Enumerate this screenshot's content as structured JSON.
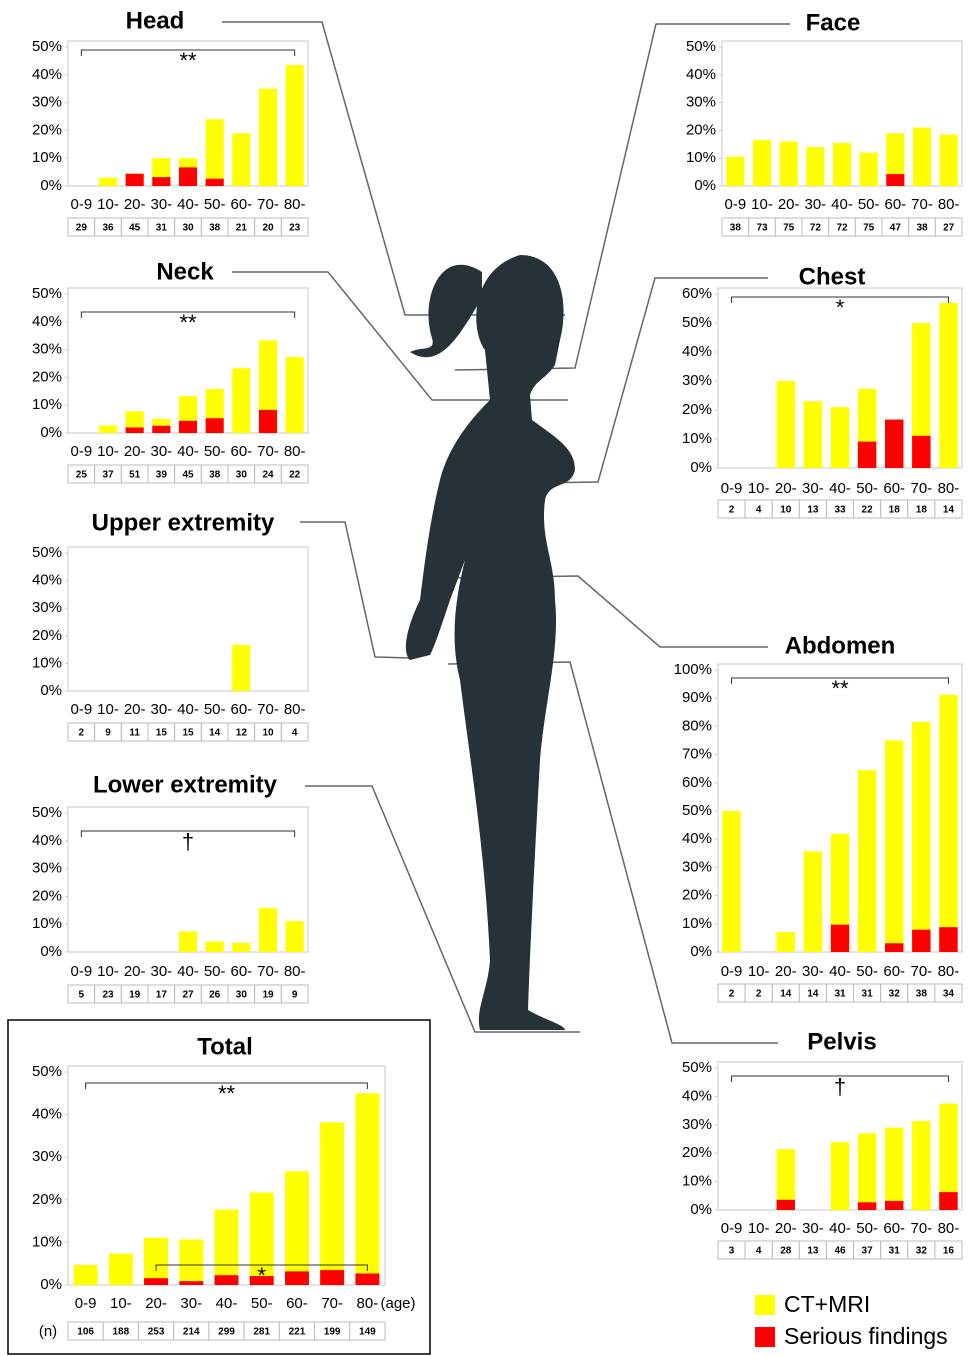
{
  "legend": [
    {
      "name": "CT+MRI",
      "color": "#ffff00"
    },
    {
      "name": "Serious findings",
      "color": "#ff0000"
    }
  ],
  "chart_data": [
    {
      "type": "bar",
      "title": "Head",
      "categories": [
        "0-9",
        "10-",
        "20-",
        "30-",
        "40-",
        "50-",
        "60-",
        "70-",
        "80-"
      ],
      "series": [
        {
          "values": [
            0,
            3,
            4.4,
            10,
            10,
            24,
            19,
            35,
            43.5
          ]
        },
        {
          "values": [
            0,
            0,
            4.4,
            3.2,
            6.7,
            2.6,
            0,
            0,
            0
          ]
        }
      ],
      "n": [
        29,
        36,
        45,
        31,
        30,
        38,
        21,
        20,
        23
      ],
      "ylim": [
        0,
        50
      ],
      "yticks": [
        {
          "value": 0,
          "label": "0%"
        },
        {
          "value": 10,
          "label": "10%"
        },
        {
          "value": 20,
          "label": "20%"
        },
        {
          "value": 30,
          "label": "30%"
        },
        {
          "value": 40,
          "label": "40%"
        },
        {
          "value": 50,
          "label": "50%"
        }
      ],
      "annotations": [
        {
          "text": "**",
          "from": 0,
          "to": 8
        }
      ]
    },
    {
      "type": "bar",
      "title": "Face",
      "categories": [
        "0-9",
        "10-",
        "20-",
        "30-",
        "40-",
        "50-",
        "60-",
        "70-",
        "80-"
      ],
      "series": [
        {
          "values": [
            10.5,
            16.5,
            16,
            14,
            15.5,
            12,
            19,
            21,
            18.5
          ]
        },
        {
          "values": [
            0,
            0,
            0,
            0,
            0,
            0,
            4.3,
            0,
            0
          ]
        }
      ],
      "n": [
        38,
        73,
        75,
        72,
        72,
        75,
        47,
        38,
        27
      ],
      "ylim": [
        0,
        50
      ],
      "yticks": [
        {
          "value": 0,
          "label": "0%"
        },
        {
          "value": 10,
          "label": "10%"
        },
        {
          "value": 20,
          "label": "20%"
        },
        {
          "value": 30,
          "label": "30%"
        },
        {
          "value": 40,
          "label": "40%"
        },
        {
          "value": 50,
          "label": "50%"
        }
      ],
      "annotations": []
    },
    {
      "type": "bar",
      "title": "Neck",
      "categories": [
        "0-9",
        "10-",
        "20-",
        "30-",
        "40-",
        "50-",
        "60-",
        "70-",
        "80-"
      ],
      "series": [
        {
          "values": [
            0,
            2.7,
            7.8,
            5.1,
            13.3,
            15.8,
            23.3,
            33.3,
            27.3
          ]
        },
        {
          "values": [
            0,
            0,
            2,
            2.6,
            4.4,
            5.3,
            0,
            8.3,
            0
          ]
        }
      ],
      "n": [
        25,
        37,
        51,
        39,
        45,
        38,
        30,
        24,
        22
      ],
      "ylim": [
        0,
        50
      ],
      "yticks": [
        {
          "value": 0,
          "label": "0%"
        },
        {
          "value": 10,
          "label": "10%"
        },
        {
          "value": 20,
          "label": "20%"
        },
        {
          "value": 30,
          "label": "30%"
        },
        {
          "value": 40,
          "label": "40%"
        },
        {
          "value": 50,
          "label": "50%"
        }
      ],
      "annotations": [
        {
          "text": "**",
          "from": 0,
          "to": 8
        }
      ]
    },
    {
      "type": "bar",
      "title": "Chest",
      "categories": [
        "0-9",
        "10-",
        "20-",
        "30-",
        "40-",
        "50-",
        "60-",
        "70-",
        "80-"
      ],
      "series": [
        {
          "values": [
            0,
            0,
            30,
            23,
            21,
            27.3,
            16.7,
            50,
            57
          ]
        },
        {
          "values": [
            0,
            0,
            0,
            0,
            0,
            9.1,
            16.7,
            11.1,
            0
          ]
        }
      ],
      "n": [
        2,
        4,
        10,
        13,
        33,
        22,
        18,
        18,
        14
      ],
      "ylim": [
        0,
        60
      ],
      "yticks": [
        {
          "value": 0,
          "label": "0%"
        },
        {
          "value": 10,
          "label": "10%"
        },
        {
          "value": 20,
          "label": "20%"
        },
        {
          "value": 30,
          "label": "30%"
        },
        {
          "value": 40,
          "label": "40%"
        },
        {
          "value": 50,
          "label": "50%"
        },
        {
          "value": 60,
          "label": "60%"
        }
      ],
      "annotations": [
        {
          "text": "*",
          "from": 0,
          "to": 8
        }
      ]
    },
    {
      "type": "bar",
      "title": "Upper extremity",
      "categories": [
        "0-9",
        "10-",
        "20-",
        "30-",
        "40-",
        "50-",
        "60-",
        "70-",
        "80-"
      ],
      "series": [
        {
          "values": [
            0,
            0,
            0,
            0,
            0,
            0,
            16.7,
            0,
            0
          ]
        },
        {
          "values": [
            0,
            0,
            0,
            0,
            0,
            0,
            0,
            0,
            0
          ]
        }
      ],
      "n": [
        2,
        9,
        11,
        15,
        15,
        14,
        12,
        10,
        4
      ],
      "ylim": [
        0,
        50
      ],
      "yticks": [
        {
          "value": 0,
          "label": "0%"
        },
        {
          "value": 10,
          "label": "10%"
        },
        {
          "value": 20,
          "label": "20%"
        },
        {
          "value": 30,
          "label": "30%"
        },
        {
          "value": 40,
          "label": "40%"
        },
        {
          "value": 50,
          "label": "50%"
        }
      ],
      "annotations": []
    },
    {
      "type": "bar",
      "title": "Abdomen",
      "categories": [
        "0-9",
        "10-",
        "20-",
        "30-",
        "40-",
        "50-",
        "60-",
        "70-",
        "80-"
      ],
      "series": [
        {
          "values": [
            50,
            0,
            7.1,
            35.7,
            41.9,
            64.5,
            75,
            81.6,
            91.2
          ]
        },
        {
          "values": [
            0,
            0,
            0,
            0,
            9.7,
            0,
            3.1,
            7.9,
            8.8
          ]
        }
      ],
      "n": [
        2,
        2,
        14,
        14,
        31,
        31,
        32,
        38,
        34
      ],
      "ylim": [
        0,
        100
      ],
      "yticks": [
        {
          "value": 0,
          "label": "0%"
        },
        {
          "value": 10,
          "label": "10%"
        },
        {
          "value": 20,
          "label": "20%"
        },
        {
          "value": 30,
          "label": "30%"
        },
        {
          "value": 40,
          "label": "40%"
        },
        {
          "value": 50,
          "label": "50%"
        },
        {
          "value": 60,
          "label": "60%"
        },
        {
          "value": 70,
          "label": "70%"
        },
        {
          "value": 80,
          "label": "80%"
        },
        {
          "value": 90,
          "label": "90%"
        },
        {
          "value": 100,
          "label": "100%"
        }
      ],
      "annotations": [
        {
          "text": "**",
          "from": 0,
          "to": 8
        }
      ]
    },
    {
      "type": "bar",
      "title": "Lower extremity",
      "categories": [
        "0-9",
        "10-",
        "20-",
        "30-",
        "40-",
        "50-",
        "60-",
        "70-",
        "80-"
      ],
      "series": [
        {
          "values": [
            0,
            0,
            0,
            0,
            7.4,
            3.8,
            3.3,
            15.8,
            11.1
          ]
        },
        {
          "values": [
            0,
            0,
            0,
            0,
            0,
            0,
            0,
            0,
            0
          ]
        }
      ],
      "n": [
        5,
        23,
        19,
        17,
        27,
        26,
        30,
        19,
        9
      ],
      "ylim": [
        0,
        50
      ],
      "yticks": [
        {
          "value": 0,
          "label": "0%"
        },
        {
          "value": 10,
          "label": "10%"
        },
        {
          "value": 20,
          "label": "20%"
        },
        {
          "value": 30,
          "label": "30%"
        },
        {
          "value": 40,
          "label": "40%"
        },
        {
          "value": 50,
          "label": "50%"
        }
      ],
      "annotations": [
        {
          "text": "†",
          "from": 0,
          "to": 8
        }
      ]
    },
    {
      "type": "bar",
      "title": "Pelvis",
      "categories": [
        "0-9",
        "10-",
        "20-",
        "30-",
        "40-",
        "50-",
        "60-",
        "70-",
        "80-"
      ],
      "series": [
        {
          "values": [
            0,
            0,
            21.4,
            0,
            23.9,
            27,
            29,
            31.3,
            37.5
          ]
        },
        {
          "values": [
            0,
            0,
            3.6,
            0,
            0,
            2.7,
            3.2,
            0,
            6.3
          ]
        }
      ],
      "n": [
        3,
        4,
        28,
        13,
        46,
        37,
        31,
        32,
        16
      ],
      "ylim": [
        0,
        50
      ],
      "yticks": [
        {
          "value": 0,
          "label": "0%"
        },
        {
          "value": 10,
          "label": "10%"
        },
        {
          "value": 20,
          "label": "20%"
        },
        {
          "value": 30,
          "label": "30%"
        },
        {
          "value": 40,
          "label": "40%"
        },
        {
          "value": 50,
          "label": "50%"
        }
      ],
      "annotations": [
        {
          "text": "†",
          "from": 0,
          "to": 8
        }
      ]
    },
    {
      "type": "bar",
      "title": "Total",
      "categories": [
        "0-9",
        "10-",
        "20-",
        "30-",
        "40-",
        "50-",
        "60-",
        "70-",
        "80-"
      ],
      "series": [
        {
          "values": [
            4.7,
            7.4,
            11.1,
            10.7,
            17.7,
            21.7,
            26.7,
            38.2,
            45
          ]
        },
        {
          "values": [
            0,
            0,
            1.6,
            0.9,
            2.3,
            2.1,
            3.2,
            3.5,
            2.7
          ]
        }
      ],
      "n": [
        106,
        188,
        253,
        214,
        299,
        281,
        221,
        199,
        149
      ],
      "ylim": [
        0,
        50
      ],
      "yticks": [
        {
          "value": 0,
          "label": "0%"
        },
        {
          "value": 10,
          "label": "10%"
        },
        {
          "value": 20,
          "label": "20%"
        },
        {
          "value": 30,
          "label": "30%"
        },
        {
          "value": 40,
          "label": "40%"
        },
        {
          "value": 50,
          "label": "50%"
        }
      ],
      "annotations": [
        {
          "text": "**",
          "from": 0,
          "to": 8
        },
        {
          "text": "*",
          "from": 2,
          "to": 8
        }
      ],
      "age_label": "(age)",
      "n_label": "(n)"
    }
  ]
}
